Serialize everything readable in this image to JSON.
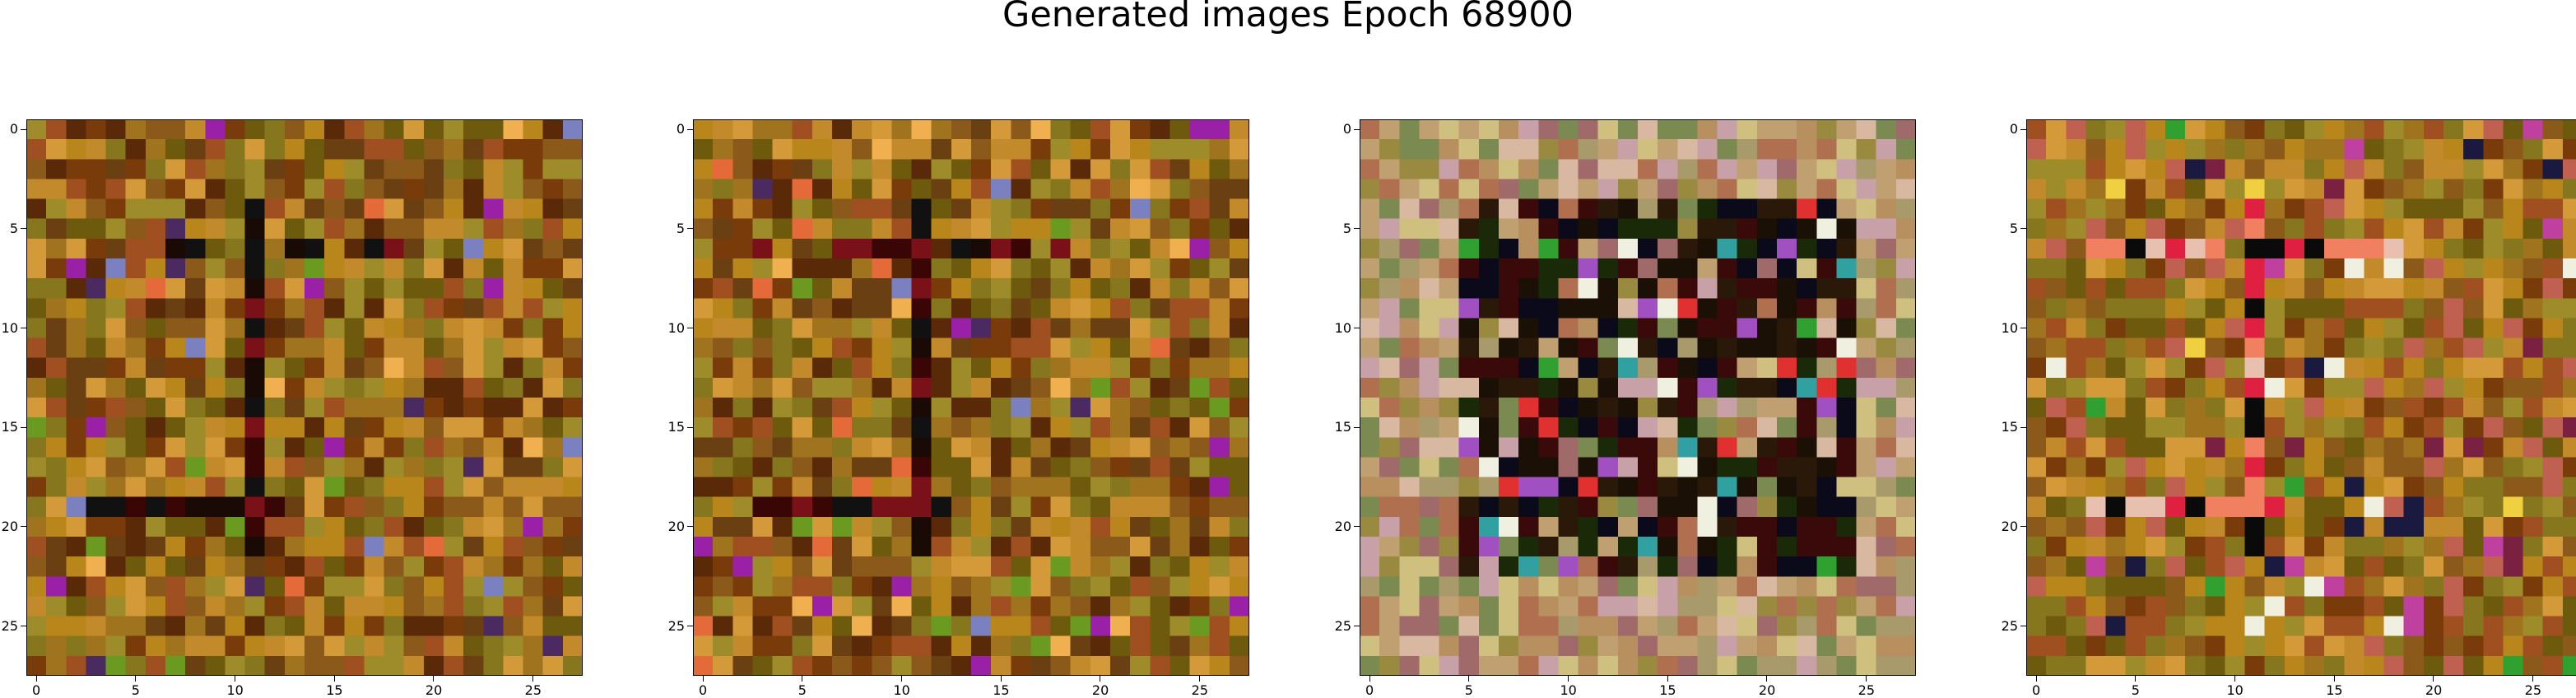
{
  "figure": {
    "title": "Generated images Epoch 68900"
  },
  "panels": [
    {
      "name": "image-1",
      "palette": [
        "#8b5a1a",
        "#a0741e",
        "#b8861a",
        "#6e5a0d",
        "#c28a2a",
        "#7a3b0b",
        "#5a2a08",
        "#9e8c2a",
        "#d49a3a",
        "#a05020",
        "#86761e",
        "#6a4012"
      ],
      "accents": [
        "#111111",
        "#1a0a05",
        "#3a0505",
        "#7a1018",
        "#e46a3a",
        "#f0b050",
        "#6a9a20",
        "#7a80c0",
        "#9a20a8",
        "#4a2a60"
      ]
    },
    {
      "name": "image-2",
      "palette": [
        "#8b5a1a",
        "#a0741e",
        "#b8861a",
        "#6e5a0d",
        "#c28a2a",
        "#7a3b0b",
        "#5a2a08",
        "#9e8c2a",
        "#d49a3a",
        "#a05020",
        "#86761e",
        "#6a4012"
      ],
      "accents": [
        "#111111",
        "#1a0a05",
        "#3a0505",
        "#7a1018",
        "#e46a3a",
        "#f0b050",
        "#6a9a20",
        "#7a80c0",
        "#9a20a8",
        "#4a2a60"
      ]
    },
    {
      "name": "image-3",
      "palette": [
        "#a89a6a",
        "#c0a070",
        "#d8b8a0",
        "#b07050",
        "#9a8a40",
        "#c8a0a8",
        "#7a8a50",
        "#d0c080",
        "#b89060",
        "#a06a6a"
      ],
      "accents": [
        "#1a1005",
        "#2a1808",
        "#0a0a1a",
        "#3a0a0a",
        "#1a2a08",
        "#e03030",
        "#30a030",
        "#f0f0e0",
        "#a050c0",
        "#30a0a0"
      ]
    },
    {
      "name": "image-4",
      "palette": [
        "#8b5a1a",
        "#a0741e",
        "#b8861a",
        "#6e5a0d",
        "#c28a2a",
        "#7a3b0b",
        "#9e8c2a",
        "#d49a3a",
        "#a05020",
        "#86761e",
        "#c06050"
      ],
      "accents": [
        "#0a0a0a",
        "#f08060",
        "#e8c0b0",
        "#e02040",
        "#c040a0",
        "#30a030",
        "#f0d040",
        "#7a2040",
        "#1a1a40",
        "#f0f0e0"
      ]
    }
  ],
  "axes": {
    "xticks": [
      "0",
      "5",
      "10",
      "15",
      "20",
      "25"
    ],
    "yticks": [
      "0",
      "5",
      "10",
      "15",
      "20",
      "25"
    ]
  }
}
